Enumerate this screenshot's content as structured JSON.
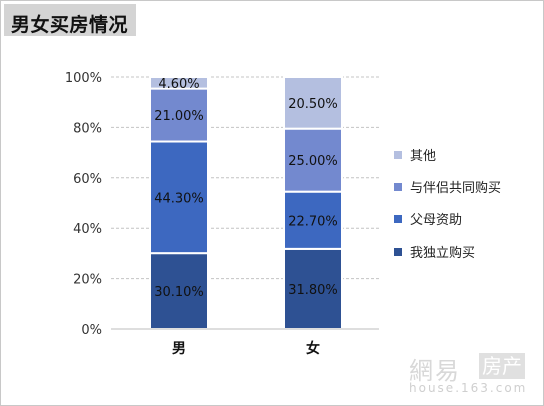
{
  "page_title": "男女买房情况",
  "watermark": {
    "brand": "網易",
    "section": "房产",
    "url": "house.163.com"
  },
  "chart_data": {
    "type": "bar",
    "stacked": true,
    "categories": [
      "男",
      "女"
    ],
    "ylim": [
      0,
      100
    ],
    "yticks": [
      0,
      20,
      40,
      60,
      80,
      100
    ],
    "ytick_labels": [
      "0%",
      "20%",
      "40%",
      "60%",
      "80%",
      "100%"
    ],
    "grid": true,
    "legend_position": "right",
    "series": [
      {
        "name": "我独立购买",
        "values": [
          30.1,
          31.8
        ],
        "labels": [
          "30.10%",
          "31.80%"
        ],
        "color": "#2e5193"
      },
      {
        "name": "父母资助",
        "values": [
          44.3,
          22.7
        ],
        "labels": [
          "44.30%",
          "22.70%"
        ],
        "color": "#3d68c0"
      },
      {
        "name": "与伴侣共同购买",
        "values": [
          21.0,
          25.0
        ],
        "labels": [
          "21.00%",
          "25.00%"
        ],
        "color": "#7389cf"
      },
      {
        "name": "其他",
        "values": [
          4.6,
          20.5
        ],
        "labels": [
          "4.60%",
          "20.50%"
        ],
        "color": "#b4bfe0"
      }
    ]
  }
}
